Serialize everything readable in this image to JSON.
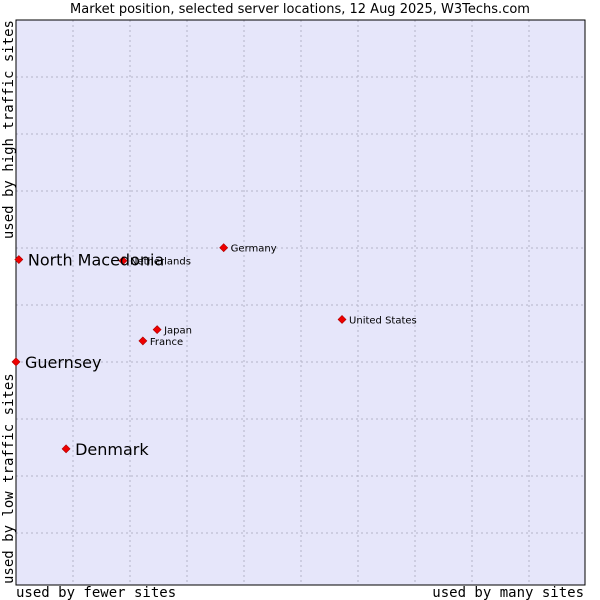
{
  "chart_data": {
    "type": "scatter",
    "title": "Market position, selected server locations, 12 Aug 2025, W3Techs.com",
    "xlabel_left": "used by fewer sites",
    "xlabel_right": "used by many sites",
    "ylabel_bottom": "used by low traffic sites",
    "ylabel_top": "used by high traffic sites",
    "xlim": [
      0,
      100
    ],
    "ylim": [
      0,
      100
    ],
    "grid": true,
    "colors": {
      "plot_background": "#e6e6fa",
      "grid": "#b4b4c8",
      "marker": "#ee0000",
      "border": "#000000"
    },
    "points": [
      {
        "label": "Germany",
        "x": 36.5,
        "y": 59.7,
        "highlight": false
      },
      {
        "label": "Netherlands",
        "x": 18.8,
        "y": 57.4,
        "highlight": false
      },
      {
        "label": "United States",
        "x": 57.3,
        "y": 47.0,
        "highlight": false
      },
      {
        "label": "Japan",
        "x": 24.8,
        "y": 45.2,
        "highlight": false
      },
      {
        "label": "France",
        "x": 22.3,
        "y": 43.2,
        "highlight": false
      },
      {
        "label": "North Macedonia",
        "x": 0.5,
        "y": 57.6,
        "highlight": true
      },
      {
        "label": "Guernsey",
        "x": 0.0,
        "y": 39.5,
        "highlight": true
      },
      {
        "label": "Denmark",
        "x": 8.8,
        "y": 24.1,
        "highlight": true
      }
    ]
  }
}
